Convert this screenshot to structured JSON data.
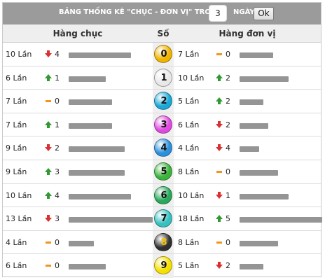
{
  "header": {
    "title": "BẢNG THỐNG KÊ \"CHỤC - ĐƠN VỊ\" TRONG",
    "days_value": "3",
    "days_label": "NGÀY",
    "ok_label": "Ok"
  },
  "columns": {
    "tens": "Hàng chục",
    "number": "Số",
    "units": "Hàng đơn vị"
  },
  "rows": [
    {
      "digit": "0",
      "ball_color": "#f0b400",
      "digit_color": "#111111",
      "tens": {
        "count": "10 Lần",
        "trend": "down",
        "value": "4",
        "bar_fraction": 0.74
      },
      "units": {
        "count": "7 Lần",
        "trend": "same",
        "value": "0",
        "bar_fraction": 0.41
      }
    },
    {
      "digit": "1",
      "ball_color": "#e8e8e8",
      "digit_color": "#111111",
      "tens": {
        "count": "6 Lần",
        "trend": "up",
        "value": "1",
        "bar_fraction": 0.44
      },
      "units": {
        "count": "10 Lần",
        "trend": "up",
        "value": "2",
        "bar_fraction": 0.59
      }
    },
    {
      "digit": "2",
      "ball_color": "#1aa8d6",
      "digit_color": "#111111",
      "tens": {
        "count": "7 Lần",
        "trend": "same",
        "value": "0",
        "bar_fraction": 0.52
      },
      "units": {
        "count": "5 Lần",
        "trend": "up",
        "value": "2",
        "bar_fraction": 0.29
      }
    },
    {
      "digit": "3",
      "ball_color": "#e04ae0",
      "digit_color": "#111111",
      "tens": {
        "count": "7 Lần",
        "trend": "up",
        "value": "1",
        "bar_fraction": 0.52
      },
      "units": {
        "count": "6 Lần",
        "trend": "down",
        "value": "2",
        "bar_fraction": 0.35
      }
    },
    {
      "digit": "4",
      "ball_color": "#2a90dc",
      "digit_color": "#111111",
      "tens": {
        "count": "9 Lần",
        "trend": "down",
        "value": "2",
        "bar_fraction": 0.67
      },
      "units": {
        "count": "4 Lần",
        "trend": "down",
        "value": "4",
        "bar_fraction": 0.24
      }
    },
    {
      "digit": "5",
      "ball_color": "#3cb43c",
      "digit_color": "#111111",
      "tens": {
        "count": "9 Lần",
        "trend": "up",
        "value": "3",
        "bar_fraction": 0.67
      },
      "units": {
        "count": "8 Lần",
        "trend": "same",
        "value": "0",
        "bar_fraction": 0.47
      }
    },
    {
      "digit": "6",
      "ball_color": "#2aa85a",
      "digit_color": "#111111",
      "tens": {
        "count": "10 Lần",
        "trend": "up",
        "value": "4",
        "bar_fraction": 0.74
      },
      "units": {
        "count": "10 Lần",
        "trend": "down",
        "value": "1",
        "bar_fraction": 0.59
      }
    },
    {
      "digit": "7",
      "ball_color": "#36c0c0",
      "digit_color": "#111111",
      "tens": {
        "count": "13 Lần",
        "trend": "down",
        "value": "3",
        "bar_fraction": 1.0
      },
      "units": {
        "count": "18 Lần",
        "trend": "up",
        "value": "5",
        "bar_fraction": 1.0
      }
    },
    {
      "digit": "8",
      "ball_color": "#303030",
      "digit_color": "#f4c400",
      "tens": {
        "count": "4 Lần",
        "trend": "same",
        "value": "0",
        "bar_fraction": 0.3
      },
      "units": {
        "count": "8 Lần",
        "trend": "same",
        "value": "0",
        "bar_fraction": 0.47
      }
    },
    {
      "digit": "9",
      "ball_color": "#f6e000",
      "digit_color": "#111111",
      "tens": {
        "count": "6 Lần",
        "trend": "same",
        "value": "0",
        "bar_fraction": 0.44
      },
      "units": {
        "count": "5 Lần",
        "trend": "down",
        "value": "2",
        "bar_fraction": 0.29
      }
    }
  ]
}
